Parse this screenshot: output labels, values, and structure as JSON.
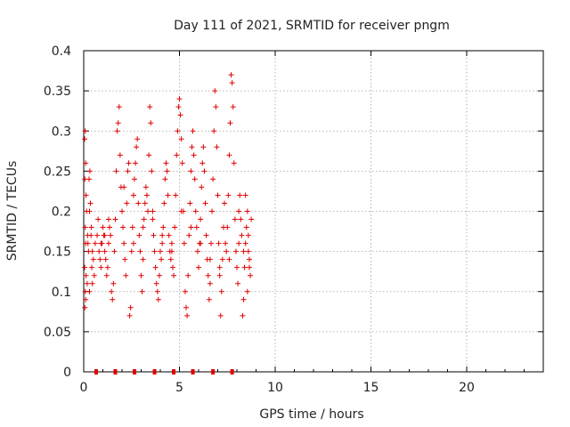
{
  "chart_data": {
    "type": "scatter",
    "title": "Day 111 of 2021, SRMTID for receiver pngm",
    "xlabel": "GPS time / hours",
    "ylabel": "SRMTID / TECUs",
    "xlim": [
      0,
      24
    ],
    "ylim": [
      0,
      0.4
    ],
    "x_ticks": [
      0,
      5,
      10,
      15,
      20
    ],
    "y_ticks": [
      0,
      0.05,
      0.1,
      0.15,
      0.2,
      0.25,
      0.3,
      0.35,
      0.4
    ],
    "x_tick_labels": [
      "0",
      "5",
      "10",
      "15",
      "20"
    ],
    "y_tick_labels": [
      "0",
      "0.05",
      "0.1",
      "0.15",
      "0.2",
      "0.25",
      "0.3",
      "0.35",
      "0.4"
    ],
    "grid": true,
    "marker": "+",
    "color": "#e00000",
    "time_markers_x": [
      0.65,
      1.65,
      2.65,
      3.7,
      4.7,
      5.7,
      6.75,
      7.75
    ],
    "series": [
      {
        "name": "SRMTID",
        "points": [
          [
            0.05,
            0.29
          ],
          [
            0.08,
            0.3
          ],
          [
            0.1,
            0.26
          ],
          [
            0.06,
            0.24
          ],
          [
            0.12,
            0.22
          ],
          [
            0.15,
            0.2
          ],
          [
            0.08,
            0.18
          ],
          [
            0.2,
            0.17
          ],
          [
            0.1,
            0.16
          ],
          [
            0.25,
            0.15
          ],
          [
            0.05,
            0.13
          ],
          [
            0.12,
            0.12
          ],
          [
            0.18,
            0.11
          ],
          [
            0.08,
            0.1
          ],
          [
            0.1,
            0.09
          ],
          [
            0.06,
            0.08
          ],
          [
            0.22,
            0.16
          ],
          [
            0.3,
            0.2
          ],
          [
            0.35,
            0.21
          ],
          [
            0.28,
            0.24
          ],
          [
            0.32,
            0.25
          ],
          [
            0.4,
            0.18
          ],
          [
            0.38,
            0.17
          ],
          [
            0.45,
            0.15
          ],
          [
            0.5,
            0.14
          ],
          [
            0.42,
            0.13
          ],
          [
            0.55,
            0.12
          ],
          [
            0.6,
            0.16
          ],
          [
            0.7,
            0.17
          ],
          [
            0.75,
            0.19
          ],
          [
            0.8,
            0.15
          ],
          [
            0.85,
            0.14
          ],
          [
            0.9,
            0.13
          ],
          [
            0.95,
            0.16
          ],
          [
            1.0,
            0.18
          ],
          [
            1.05,
            0.17
          ],
          [
            1.1,
            0.15
          ],
          [
            1.15,
            0.14
          ],
          [
            1.2,
            0.12
          ],
          [
            1.25,
            0.13
          ],
          [
            1.3,
            0.16
          ],
          [
            1.35,
            0.18
          ],
          [
            1.4,
            0.17
          ],
          [
            1.45,
            0.1
          ],
          [
            1.5,
            0.09
          ],
          [
            1.55,
            0.11
          ],
          [
            1.6,
            0.15
          ],
          [
            1.65,
            0.19
          ],
          [
            1.7,
            0.25
          ],
          [
            1.75,
            0.3
          ],
          [
            1.8,
            0.31
          ],
          [
            1.85,
            0.33
          ],
          [
            1.9,
            0.27
          ],
          [
            1.95,
            0.23
          ],
          [
            2.0,
            0.2
          ],
          [
            2.05,
            0.18
          ],
          [
            2.1,
            0.16
          ],
          [
            2.15,
            0.14
          ],
          [
            2.2,
            0.12
          ],
          [
            2.25,
            0.21
          ],
          [
            2.3,
            0.25
          ],
          [
            2.35,
            0.26
          ],
          [
            2.4,
            0.07
          ],
          [
            2.45,
            0.08
          ],
          [
            2.5,
            0.15
          ],
          [
            2.55,
            0.18
          ],
          [
            2.6,
            0.22
          ],
          [
            2.65,
            0.24
          ],
          [
            2.7,
            0.26
          ],
          [
            2.75,
            0.28
          ],
          [
            2.8,
            0.29
          ],
          [
            2.85,
            0.21
          ],
          [
            2.9,
            0.17
          ],
          [
            2.95,
            0.15
          ],
          [
            3.0,
            0.12
          ],
          [
            3.05,
            0.1
          ],
          [
            3.1,
            0.14
          ],
          [
            3.15,
            0.19
          ],
          [
            3.2,
            0.21
          ],
          [
            3.25,
            0.23
          ],
          [
            3.3,
            0.22
          ],
          [
            3.35,
            0.2
          ],
          [
            3.4,
            0.27
          ],
          [
            3.45,
            0.33
          ],
          [
            3.5,
            0.31
          ],
          [
            3.55,
            0.25
          ],
          [
            3.6,
            0.19
          ],
          [
            3.65,
            0.17
          ],
          [
            3.7,
            0.15
          ],
          [
            3.75,
            0.13
          ],
          [
            3.8,
            0.11
          ],
          [
            3.85,
            0.1
          ],
          [
            3.9,
            0.09
          ],
          [
            3.95,
            0.12
          ],
          [
            4.0,
            0.15
          ],
          [
            4.05,
            0.14
          ],
          [
            4.1,
            0.16
          ],
          [
            4.15,
            0.18
          ],
          [
            4.2,
            0.21
          ],
          [
            4.25,
            0.24
          ],
          [
            4.3,
            0.26
          ],
          [
            4.35,
            0.25
          ],
          [
            4.4,
            0.22
          ],
          [
            4.45,
            0.17
          ],
          [
            4.5,
            0.15
          ],
          [
            4.55,
            0.14
          ],
          [
            4.6,
            0.16
          ],
          [
            4.65,
            0.13
          ],
          [
            4.7,
            0.12
          ],
          [
            4.75,
            0.18
          ],
          [
            4.8,
            0.22
          ],
          [
            4.85,
            0.27
          ],
          [
            4.9,
            0.3
          ],
          [
            4.95,
            0.33
          ],
          [
            5.0,
            0.34
          ],
          [
            5.05,
            0.32
          ],
          [
            5.1,
            0.29
          ],
          [
            5.15,
            0.26
          ],
          [
            5.2,
            0.2
          ],
          [
            5.25,
            0.16
          ],
          [
            5.3,
            0.1
          ],
          [
            5.35,
            0.08
          ],
          [
            5.4,
            0.07
          ],
          [
            5.45,
            0.12
          ],
          [
            5.5,
            0.17
          ],
          [
            5.55,
            0.21
          ],
          [
            5.6,
            0.25
          ],
          [
            5.65,
            0.28
          ],
          [
            5.7,
            0.3
          ],
          [
            5.75,
            0.27
          ],
          [
            5.8,
            0.24
          ],
          [
            5.85,
            0.2
          ],
          [
            5.9,
            0.18
          ],
          [
            5.95,
            0.15
          ],
          [
            6.0,
            0.13
          ],
          [
            6.05,
            0.16
          ],
          [
            6.1,
            0.19
          ],
          [
            6.15,
            0.23
          ],
          [
            6.2,
            0.26
          ],
          [
            6.25,
            0.28
          ],
          [
            6.3,
            0.25
          ],
          [
            6.35,
            0.21
          ],
          [
            6.4,
            0.17
          ],
          [
            6.45,
            0.14
          ],
          [
            6.5,
            0.12
          ],
          [
            6.55,
            0.09
          ],
          [
            6.6,
            0.11
          ],
          [
            6.65,
            0.16
          ],
          [
            6.7,
            0.2
          ],
          [
            6.75,
            0.24
          ],
          [
            6.8,
            0.3
          ],
          [
            6.85,
            0.35
          ],
          [
            6.9,
            0.33
          ],
          [
            6.95,
            0.28
          ],
          [
            7.0,
            0.22
          ],
          [
            7.05,
            0.16
          ],
          [
            7.1,
            0.12
          ],
          [
            7.15,
            0.07
          ],
          [
            7.2,
            0.1
          ],
          [
            7.25,
            0.14
          ],
          [
            7.3,
            0.18
          ],
          [
            7.35,
            0.21
          ],
          [
            7.4,
            0.16
          ],
          [
            7.45,
            0.15
          ],
          [
            7.5,
            0.18
          ],
          [
            7.55,
            0.22
          ],
          [
            7.6,
            0.27
          ],
          [
            7.65,
            0.31
          ],
          [
            7.7,
            0.37
          ],
          [
            7.75,
            0.36
          ],
          [
            7.8,
            0.33
          ],
          [
            7.85,
            0.26
          ],
          [
            7.9,
            0.19
          ],
          [
            7.95,
            0.15
          ],
          [
            8.0,
            0.13
          ],
          [
            8.05,
            0.11
          ],
          [
            8.1,
            0.2
          ],
          [
            8.15,
            0.22
          ],
          [
            8.2,
            0.19
          ],
          [
            8.25,
            0.17
          ],
          [
            8.3,
            0.07
          ],
          [
            8.35,
            0.09
          ],
          [
            8.4,
            0.13
          ],
          [
            8.45,
            0.16
          ],
          [
            8.5,
            0.18
          ],
          [
            8.55,
            0.2
          ],
          [
            8.6,
            0.17
          ],
          [
            8.65,
            0.14
          ],
          [
            8.7,
            0.12
          ],
          [
            8.75,
            0.19
          ],
          [
            8.55,
            0.1
          ],
          [
            8.65,
            0.13
          ],
          [
            8.45,
            0.22
          ],
          [
            8.35,
            0.15
          ],
          [
            0.3,
            0.1
          ],
          [
            0.45,
            0.11
          ],
          [
            0.9,
            0.16
          ],
          [
            1.1,
            0.17
          ],
          [
            1.3,
            0.19
          ],
          [
            2.1,
            0.23
          ],
          [
            2.6,
            0.16
          ],
          [
            3.1,
            0.18
          ],
          [
            3.6,
            0.2
          ],
          [
            4.1,
            0.17
          ],
          [
            4.6,
            0.15
          ],
          [
            5.1,
            0.2
          ],
          [
            5.6,
            0.18
          ],
          [
            6.1,
            0.16
          ],
          [
            6.6,
            0.14
          ],
          [
            7.1,
            0.13
          ],
          [
            7.6,
            0.14
          ],
          [
            8.1,
            0.16
          ],
          [
            8.6,
            0.15
          ]
        ]
      }
    ]
  }
}
